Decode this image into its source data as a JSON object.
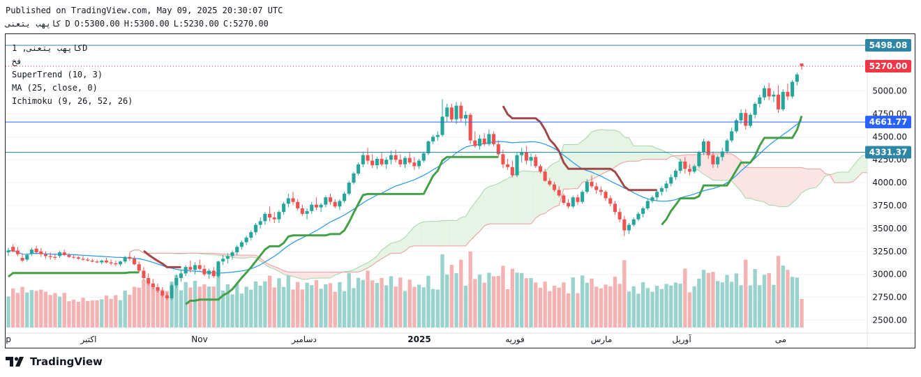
{
  "header": {
    "published": "Published on TradingView.com, May 09, 2025 20:30:07 UTC",
    "symbol": "کاپهب یتعنی",
    "interval": "D",
    "open": "O:5300.00",
    "high": "H:5300.00",
    "low": "L:5230.00",
    "close": "C:5270.00"
  },
  "legend": {
    "symbol_line": "کاپهب یتعنی, 1D",
    "exchange": "فخ",
    "supertrend": "SuperTrend (10, 3)",
    "ma": "MA (25, close, 0)",
    "ichimoku": "Ichimoku (9, 26, 52, 26)"
  },
  "brand": {
    "name": "TradingView"
  },
  "chart_data": {
    "type": "candlestick",
    "y_axis_ticks": [
      "5000.00",
      "4750.00",
      "4500.00",
      "4250.00",
      "4000.00",
      "3750.00",
      "3500.00",
      "3250.00",
      "3000.00",
      "2750.00",
      "2500.00"
    ],
    "ylim": [
      2420,
      5620
    ],
    "x_axis_labels": [
      "p",
      "اکتبر",
      "Nov",
      "دسامبر",
      "2025",
      "فوریه",
      "مارس",
      "آوریل",
      "می"
    ],
    "price_markers": [
      {
        "value": 5498.08,
        "label": "5498.08",
        "color": "#2e86a7",
        "style": "horizontal-line"
      },
      {
        "value": 5270.0,
        "label": "5270.00",
        "color": "#f23645",
        "style": "last-price"
      },
      {
        "value": 4661.77,
        "label": "4661.77",
        "color": "#2962ff",
        "style": "horizontal-line"
      },
      {
        "value": 4331.37,
        "label": "4331.37",
        "color": "#2e86a7",
        "style": "horizontal-line"
      }
    ],
    "colors": {
      "up": "#26a69a",
      "down": "#ef5350",
      "supertrend_up": "#43a047",
      "supertrend_down": "#a04848",
      "ma": "#2196f3",
      "cloud_bull": "#e6f4e6",
      "cloud_bear": "#fbe4e4"
    },
    "candles": [
      {
        "o": 3240,
        "h": 3290,
        "l": 3200,
        "c": 3260
      },
      {
        "o": 3300,
        "h": 3330,
        "l": 3240,
        "c": 3250
      },
      {
        "o": 3260,
        "h": 3300,
        "l": 3200,
        "c": 3220
      },
      {
        "o": 3180,
        "h": 3230,
        "l": 3130,
        "c": 3150
      },
      {
        "o": 3160,
        "h": 3230,
        "l": 3140,
        "c": 3210
      },
      {
        "o": 3230,
        "h": 3290,
        "l": 3200,
        "c": 3270
      },
      {
        "o": 3280,
        "h": 3310,
        "l": 3220,
        "c": 3240
      },
      {
        "o": 3250,
        "h": 3290,
        "l": 3190,
        "c": 3220
      },
      {
        "o": 3220,
        "h": 3250,
        "l": 3170,
        "c": 3200
      },
      {
        "o": 3200,
        "h": 3240,
        "l": 3160,
        "c": 3190
      },
      {
        "o": 3190,
        "h": 3230,
        "l": 3160,
        "c": 3180
      },
      {
        "o": 3200,
        "h": 3260,
        "l": 3180,
        "c": 3240
      },
      {
        "o": 3240,
        "h": 3270,
        "l": 3200,
        "c": 3210
      },
      {
        "o": 3210,
        "h": 3230,
        "l": 3180,
        "c": 3190
      },
      {
        "o": 3190,
        "h": 3210,
        "l": 3170,
        "c": 3185
      },
      {
        "o": 3185,
        "h": 3200,
        "l": 3160,
        "c": 3170
      },
      {
        "o": 3170,
        "h": 3200,
        "l": 3150,
        "c": 3160
      },
      {
        "o": 3160,
        "h": 3180,
        "l": 3140,
        "c": 3150
      },
      {
        "o": 3150,
        "h": 3170,
        "l": 3130,
        "c": 3140
      },
      {
        "o": 3140,
        "h": 3160,
        "l": 3120,
        "c": 3130
      },
      {
        "o": 3130,
        "h": 3160,
        "l": 3110,
        "c": 3150
      },
      {
        "o": 3150,
        "h": 3180,
        "l": 3120,
        "c": 3130
      },
      {
        "o": 3130,
        "h": 3160,
        "l": 3100,
        "c": 3120
      },
      {
        "o": 3120,
        "h": 3150,
        "l": 3090,
        "c": 3110
      },
      {
        "o": 3110,
        "h": 3150,
        "l": 3090,
        "c": 3140
      },
      {
        "o": 3140,
        "h": 3200,
        "l": 3120,
        "c": 3190
      },
      {
        "o": 3190,
        "h": 3240,
        "l": 3150,
        "c": 3170
      },
      {
        "o": 3170,
        "h": 3200,
        "l": 3100,
        "c": 3110
      },
      {
        "o": 3110,
        "h": 3140,
        "l": 3020,
        "c": 3040
      },
      {
        "o": 3040,
        "h": 3080,
        "l": 2940,
        "c": 2960
      },
      {
        "o": 2960,
        "h": 3010,
        "l": 2880,
        "c": 2900
      },
      {
        "o": 2900,
        "h": 2950,
        "l": 2840,
        "c": 2860
      },
      {
        "o": 2860,
        "h": 2900,
        "l": 2800,
        "c": 2820
      },
      {
        "o": 2820,
        "h": 2860,
        "l": 2750,
        "c": 2770
      },
      {
        "o": 2770,
        "h": 2800,
        "l": 2720,
        "c": 2740
      },
      {
        "o": 2740,
        "h": 2900,
        "l": 2720,
        "c": 2880
      },
      {
        "o": 2880,
        "h": 3000,
        "l": 2850,
        "c": 2960
      },
      {
        "o": 2960,
        "h": 3050,
        "l": 2920,
        "c": 3010
      },
      {
        "o": 3010,
        "h": 3100,
        "l": 2980,
        "c": 3080
      },
      {
        "o": 3080,
        "h": 3150,
        "l": 3020,
        "c": 3050
      },
      {
        "o": 3050,
        "h": 3130,
        "l": 3000,
        "c": 3100
      },
      {
        "o": 3100,
        "h": 3160,
        "l": 3040,
        "c": 3060
      },
      {
        "o": 3060,
        "h": 3100,
        "l": 2980,
        "c": 3000
      },
      {
        "o": 3000,
        "h": 3060,
        "l": 2950,
        "c": 3040
      },
      {
        "o": 3040,
        "h": 3080,
        "l": 2960,
        "c": 2980
      },
      {
        "o": 2980,
        "h": 3150,
        "l": 2960,
        "c": 3140
      },
      {
        "o": 3140,
        "h": 3210,
        "l": 3100,
        "c": 3170
      },
      {
        "o": 3170,
        "h": 3230,
        "l": 3120,
        "c": 3200
      },
      {
        "o": 3200,
        "h": 3260,
        "l": 3160,
        "c": 3240
      },
      {
        "o": 3240,
        "h": 3320,
        "l": 3210,
        "c": 3300
      },
      {
        "o": 3300,
        "h": 3370,
        "l": 3270,
        "c": 3350
      },
      {
        "o": 3350,
        "h": 3420,
        "l": 3320,
        "c": 3400
      },
      {
        "o": 3400,
        "h": 3480,
        "l": 3370,
        "c": 3460
      },
      {
        "o": 3460,
        "h": 3560,
        "l": 3430,
        "c": 3540
      },
      {
        "o": 3540,
        "h": 3620,
        "l": 3500,
        "c": 3580
      },
      {
        "o": 3580,
        "h": 3680,
        "l": 3540,
        "c": 3660
      },
      {
        "o": 3660,
        "h": 3740,
        "l": 3580,
        "c": 3620
      },
      {
        "o": 3620,
        "h": 3680,
        "l": 3560,
        "c": 3600
      },
      {
        "o": 3600,
        "h": 3700,
        "l": 3560,
        "c": 3680
      },
      {
        "o": 3680,
        "h": 3790,
        "l": 3650,
        "c": 3770
      },
      {
        "o": 3770,
        "h": 3880,
        "l": 3730,
        "c": 3830
      },
      {
        "o": 3830,
        "h": 3900,
        "l": 3760,
        "c": 3790
      },
      {
        "o": 3790,
        "h": 3820,
        "l": 3700,
        "c": 3720
      },
      {
        "o": 3720,
        "h": 3760,
        "l": 3640,
        "c": 3660
      },
      {
        "o": 3660,
        "h": 3720,
        "l": 3600,
        "c": 3690
      },
      {
        "o": 3690,
        "h": 3790,
        "l": 3660,
        "c": 3760
      },
      {
        "o": 3760,
        "h": 3840,
        "l": 3700,
        "c": 3730
      },
      {
        "o": 3730,
        "h": 3780,
        "l": 3680,
        "c": 3760
      },
      {
        "o": 3760,
        "h": 3860,
        "l": 3730,
        "c": 3840
      },
      {
        "o": 3840,
        "h": 3880,
        "l": 3760,
        "c": 3790
      },
      {
        "o": 3790,
        "h": 3820,
        "l": 3720,
        "c": 3740
      },
      {
        "o": 3740,
        "h": 3820,
        "l": 3700,
        "c": 3800
      },
      {
        "o": 3800,
        "h": 3900,
        "l": 3780,
        "c": 3880
      },
      {
        "o": 3880,
        "h": 4020,
        "l": 3860,
        "c": 4000
      },
      {
        "o": 4000,
        "h": 4120,
        "l": 3980,
        "c": 4100
      },
      {
        "o": 4100,
        "h": 4220,
        "l": 4080,
        "c": 4200
      },
      {
        "o": 4200,
        "h": 4340,
        "l": 4170,
        "c": 4300
      },
      {
        "o": 4300,
        "h": 4380,
        "l": 4200,
        "c": 4240
      },
      {
        "o": 4240,
        "h": 4310,
        "l": 4160,
        "c": 4190
      },
      {
        "o": 4190,
        "h": 4280,
        "l": 4150,
        "c": 4260
      },
      {
        "o": 4260,
        "h": 4330,
        "l": 4180,
        "c": 4200
      },
      {
        "o": 4200,
        "h": 4280,
        "l": 4150,
        "c": 4250
      },
      {
        "o": 4250,
        "h": 4350,
        "l": 4200,
        "c": 4300
      },
      {
        "o": 4300,
        "h": 4360,
        "l": 4220,
        "c": 4250
      },
      {
        "o": 4250,
        "h": 4310,
        "l": 4170,
        "c": 4200
      },
      {
        "o": 4200,
        "h": 4290,
        "l": 4160,
        "c": 4270
      },
      {
        "o": 4270,
        "h": 4330,
        "l": 4200,
        "c": 4220
      },
      {
        "o": 4220,
        "h": 4280,
        "l": 4140,
        "c": 4180
      },
      {
        "o": 4180,
        "h": 4260,
        "l": 4150,
        "c": 4240
      },
      {
        "o": 4240,
        "h": 4340,
        "l": 4220,
        "c": 4320
      },
      {
        "o": 4320,
        "h": 4460,
        "l": 4300,
        "c": 4450
      },
      {
        "o": 4450,
        "h": 4520,
        "l": 4420,
        "c": 4500
      },
      {
        "o": 4500,
        "h": 4560,
        "l": 4460,
        "c": 4520
      },
      {
        "o": 4520,
        "h": 4910,
        "l": 4500,
        "c": 4720
      },
      {
        "o": 4720,
        "h": 4860,
        "l": 4660,
        "c": 4820
      },
      {
        "o": 4820,
        "h": 4860,
        "l": 4660,
        "c": 4690
      },
      {
        "o": 4690,
        "h": 4880,
        "l": 4640,
        "c": 4840
      },
      {
        "o": 4840,
        "h": 4880,
        "l": 4660,
        "c": 4700
      },
      {
        "o": 4700,
        "h": 4780,
        "l": 4620,
        "c": 4740
      },
      {
        "o": 4740,
        "h": 4760,
        "l": 4420,
        "c": 4460
      },
      {
        "o": 4460,
        "h": 4560,
        "l": 4380,
        "c": 4400
      },
      {
        "o": 4400,
        "h": 4520,
        "l": 4360,
        "c": 4480
      },
      {
        "o": 4480,
        "h": 4540,
        "l": 4400,
        "c": 4420
      },
      {
        "o": 4420,
        "h": 4580,
        "l": 4400,
        "c": 4530
      },
      {
        "o": 4530,
        "h": 4560,
        "l": 4400,
        "c": 4420
      },
      {
        "o": 4420,
        "h": 4460,
        "l": 4280,
        "c": 4310
      },
      {
        "o": 4310,
        "h": 4360,
        "l": 4160,
        "c": 4200
      },
      {
        "o": 4200,
        "h": 4260,
        "l": 4140,
        "c": 4170
      },
      {
        "o": 4170,
        "h": 4240,
        "l": 4060,
        "c": 4080
      },
      {
        "o": 4080,
        "h": 4330,
        "l": 4060,
        "c": 4300
      },
      {
        "o": 4300,
        "h": 4380,
        "l": 4220,
        "c": 4330
      },
      {
        "o": 4330,
        "h": 4400,
        "l": 4200,
        "c": 4240
      },
      {
        "o": 4240,
        "h": 4320,
        "l": 4180,
        "c": 4280
      },
      {
        "o": 4280,
        "h": 4310,
        "l": 4160,
        "c": 4180
      },
      {
        "o": 4180,
        "h": 4200,
        "l": 4100,
        "c": 4120
      },
      {
        "o": 4120,
        "h": 4150,
        "l": 4010,
        "c": 4020
      },
      {
        "o": 4020,
        "h": 4050,
        "l": 3960,
        "c": 3980
      },
      {
        "o": 3980,
        "h": 4010,
        "l": 3900,
        "c": 3920
      },
      {
        "o": 3920,
        "h": 3960,
        "l": 3840,
        "c": 3860
      },
      {
        "o": 3860,
        "h": 3880,
        "l": 3760,
        "c": 3780
      },
      {
        "o": 3780,
        "h": 3820,
        "l": 3720,
        "c": 3740
      },
      {
        "o": 3740,
        "h": 3860,
        "l": 3720,
        "c": 3840
      },
      {
        "o": 3840,
        "h": 3870,
        "l": 3760,
        "c": 3790
      },
      {
        "o": 3790,
        "h": 3920,
        "l": 3770,
        "c": 3900
      },
      {
        "o": 3900,
        "h": 4040,
        "l": 3880,
        "c": 4010
      },
      {
        "o": 4010,
        "h": 4080,
        "l": 3940,
        "c": 3960
      },
      {
        "o": 3960,
        "h": 4000,
        "l": 3880,
        "c": 3920
      },
      {
        "o": 3920,
        "h": 3960,
        "l": 3860,
        "c": 3900
      },
      {
        "o": 3900,
        "h": 3920,
        "l": 3800,
        "c": 3830
      },
      {
        "o": 3830,
        "h": 3860,
        "l": 3740,
        "c": 3770
      },
      {
        "o": 3770,
        "h": 3800,
        "l": 3650,
        "c": 3680
      },
      {
        "o": 3680,
        "h": 3720,
        "l": 3570,
        "c": 3600
      },
      {
        "o": 3600,
        "h": 3640,
        "l": 3420,
        "c": 3480
      },
      {
        "o": 3480,
        "h": 3560,
        "l": 3440,
        "c": 3540
      },
      {
        "o": 3540,
        "h": 3620,
        "l": 3520,
        "c": 3600
      },
      {
        "o": 3600,
        "h": 3680,
        "l": 3580,
        "c": 3660
      },
      {
        "o": 3660,
        "h": 3740,
        "l": 3620,
        "c": 3720
      },
      {
        "o": 3720,
        "h": 3820,
        "l": 3700,
        "c": 3800
      },
      {
        "o": 3800,
        "h": 3860,
        "l": 3780,
        "c": 3840
      },
      {
        "o": 3840,
        "h": 3920,
        "l": 3800,
        "c": 3900
      },
      {
        "o": 3900,
        "h": 3960,
        "l": 3860,
        "c": 3940
      },
      {
        "o": 3940,
        "h": 4020,
        "l": 3900,
        "c": 3990
      },
      {
        "o": 3990,
        "h": 4090,
        "l": 3960,
        "c": 4060
      },
      {
        "o": 4060,
        "h": 4150,
        "l": 4030,
        "c": 4130
      },
      {
        "o": 4130,
        "h": 4260,
        "l": 4100,
        "c": 4230
      },
      {
        "o": 4230,
        "h": 4280,
        "l": 4100,
        "c": 4150
      },
      {
        "o": 4150,
        "h": 4200,
        "l": 4080,
        "c": 4120
      },
      {
        "o": 4120,
        "h": 4200,
        "l": 4100,
        "c": 4180
      },
      {
        "o": 4180,
        "h": 4350,
        "l": 4160,
        "c": 4330
      },
      {
        "o": 4330,
        "h": 4480,
        "l": 4300,
        "c": 4450
      },
      {
        "o": 4450,
        "h": 4460,
        "l": 4260,
        "c": 4300
      },
      {
        "o": 4300,
        "h": 4340,
        "l": 4160,
        "c": 4200
      },
      {
        "o": 4200,
        "h": 4300,
        "l": 4160,
        "c": 4280
      },
      {
        "o": 4280,
        "h": 4380,
        "l": 4240,
        "c": 4340
      },
      {
        "o": 4340,
        "h": 4480,
        "l": 4320,
        "c": 4460
      },
      {
        "o": 4460,
        "h": 4600,
        "l": 4440,
        "c": 4560
      },
      {
        "o": 4560,
        "h": 4700,
        "l": 4540,
        "c": 4680
      },
      {
        "o": 4680,
        "h": 4800,
        "l": 4640,
        "c": 4760
      },
      {
        "o": 4760,
        "h": 4800,
        "l": 4580,
        "c": 4620
      },
      {
        "o": 4620,
        "h": 4760,
        "l": 4600,
        "c": 4740
      },
      {
        "o": 4740,
        "h": 4880,
        "l": 4700,
        "c": 4860
      },
      {
        "o": 4860,
        "h": 4960,
        "l": 4820,
        "c": 4930
      },
      {
        "o": 4930,
        "h": 5060,
        "l": 4900,
        "c": 5030
      },
      {
        "o": 5030,
        "h": 5090,
        "l": 4900,
        "c": 4940
      },
      {
        "o": 4940,
        "h": 5000,
        "l": 4880,
        "c": 4960
      },
      {
        "o": 4960,
        "h": 5060,
        "l": 4760,
        "c": 4800
      },
      {
        "o": 4800,
        "h": 5020,
        "l": 4780,
        "c": 4990
      },
      {
        "o": 4990,
        "h": 5080,
        "l": 4900,
        "c": 4940
      },
      {
        "o": 4940,
        "h": 5120,
        "l": 4920,
        "c": 5100
      },
      {
        "o": 5100,
        "h": 5200,
        "l": 5060,
        "c": 5180
      },
      {
        "o": 5300,
        "h": 5300,
        "l": 5230,
        "c": 5270
      }
    ]
  }
}
